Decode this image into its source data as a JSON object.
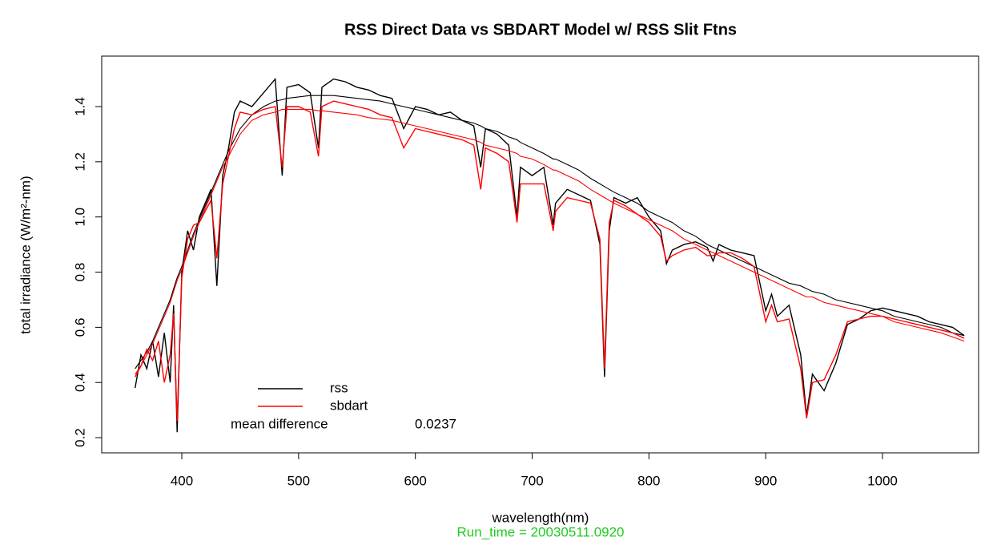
{
  "chart_data": {
    "type": "line",
    "title": "RSS Direct Data vs SBDART Model w/ RSS Slit Ftns",
    "xlabel": "wavelength(nm)",
    "ylabel": "total irradiance (W/m²-nm)",
    "footnote": "Run_time = 20030511.0920",
    "annotation": {
      "text": "mean difference",
      "value": 0.0237
    },
    "legend": "bottom-left",
    "xlim": [
      331.4,
      1082.3
    ],
    "ylim": [
      0.145,
      1.583
    ],
    "xticks": [
      400,
      500,
      600,
      700,
      800,
      900,
      1000
    ],
    "yticks": [
      0.2,
      0.4,
      0.6,
      0.8,
      {
        "value": 1,
        "label": "1.0"
      },
      1.2,
      1.4
    ],
    "x": [
      360,
      365,
      370,
      375,
      380,
      385,
      390,
      393,
      396,
      400,
      405,
      410,
      415,
      420,
      425,
      430,
      435,
      440,
      445,
      450,
      460,
      470,
      480,
      486,
      490,
      500,
      510,
      517,
      520,
      530,
      540,
      550,
      560,
      570,
      580,
      590,
      600,
      610,
      620,
      630,
      640,
      650,
      656,
      660,
      670,
      680,
      687,
      690,
      700,
      710,
      718,
      720,
      730,
      740,
      750,
      758,
      762,
      766,
      770,
      780,
      790,
      800,
      810,
      815,
      820,
      830,
      840,
      850,
      855,
      860,
      870,
      880,
      890,
      900,
      905,
      910,
      920,
      930,
      935,
      940,
      950,
      960,
      970,
      980,
      990,
      1000,
      1010,
      1020,
      1030,
      1040,
      1050,
      1060,
      1070
    ],
    "series": [
      {
        "name": "rss",
        "color": "#000000",
        "values": [
          0.38,
          0.5,
          0.45,
          0.55,
          0.42,
          0.58,
          0.4,
          0.68,
          0.22,
          0.8,
          0.95,
          0.88,
          1.0,
          1.05,
          1.1,
          0.75,
          1.15,
          1.25,
          1.38,
          1.42,
          1.4,
          1.45,
          1.5,
          1.15,
          1.47,
          1.48,
          1.45,
          1.25,
          1.47,
          1.5,
          1.49,
          1.47,
          1.46,
          1.44,
          1.43,
          1.32,
          1.4,
          1.39,
          1.37,
          1.38,
          1.35,
          1.33,
          1.18,
          1.32,
          1.3,
          1.26,
          1.0,
          1.18,
          1.15,
          1.18,
          0.97,
          1.05,
          1.1,
          1.08,
          1.06,
          0.9,
          0.42,
          0.95,
          1.07,
          1.05,
          1.07,
          1.0,
          0.95,
          0.83,
          0.88,
          0.9,
          0.91,
          0.89,
          0.84,
          0.9,
          0.88,
          0.87,
          0.86,
          0.66,
          0.72,
          0.64,
          0.68,
          0.5,
          0.28,
          0.43,
          0.37,
          0.47,
          0.61,
          0.63,
          0.66,
          0.67,
          0.66,
          0.65,
          0.64,
          0.62,
          0.61,
          0.6,
          0.57
        ],
        "smooth": [
          0.45,
          0.48,
          0.51,
          0.55,
          0.6,
          0.65,
          0.7,
          0.74,
          0.78,
          0.82,
          0.88,
          0.94,
          0.99,
          1.04,
          1.09,
          1.14,
          1.19,
          1.24,
          1.28,
          1.32,
          1.37,
          1.4,
          1.42,
          1.425,
          1.43,
          1.435,
          1.44,
          1.44,
          1.44,
          1.44,
          1.435,
          1.43,
          1.425,
          1.42,
          1.41,
          1.4,
          1.39,
          1.38,
          1.37,
          1.36,
          1.35,
          1.34,
          1.33,
          1.32,
          1.31,
          1.29,
          1.28,
          1.27,
          1.25,
          1.23,
          1.21,
          1.21,
          1.19,
          1.17,
          1.14,
          1.12,
          1.11,
          1.1,
          1.09,
          1.07,
          1.05,
          1.02,
          1.0,
          0.99,
          0.98,
          0.95,
          0.93,
          0.9,
          0.89,
          0.88,
          0.86,
          0.84,
          0.82,
          0.8,
          0.79,
          0.78,
          0.76,
          0.75,
          0.74,
          0.73,
          0.72,
          0.7,
          0.69,
          0.68,
          0.67,
          0.66,
          0.64,
          0.63,
          0.62,
          0.61,
          0.6,
          0.58,
          0.57
        ]
      },
      {
        "name": "sbdart",
        "color": "#ff0000",
        "values": [
          0.42,
          0.46,
          0.52,
          0.48,
          0.55,
          0.4,
          0.5,
          0.65,
          0.26,
          0.78,
          0.92,
          0.97,
          0.98,
          1.02,
          1.06,
          0.85,
          1.12,
          1.22,
          1.32,
          1.38,
          1.37,
          1.39,
          1.4,
          1.18,
          1.4,
          1.4,
          1.38,
          1.22,
          1.4,
          1.42,
          1.41,
          1.4,
          1.39,
          1.37,
          1.36,
          1.25,
          1.32,
          1.31,
          1.3,
          1.29,
          1.28,
          1.26,
          1.1,
          1.25,
          1.23,
          1.2,
          0.98,
          1.12,
          1.12,
          1.12,
          0.95,
          1.02,
          1.07,
          1.06,
          1.05,
          0.92,
          0.45,
          0.98,
          1.06,
          1.04,
          1.01,
          0.98,
          0.93,
          0.84,
          0.86,
          0.88,
          0.89,
          0.86,
          0.86,
          0.87,
          0.87,
          0.85,
          0.82,
          0.62,
          0.68,
          0.62,
          0.63,
          0.45,
          0.27,
          0.4,
          0.41,
          0.5,
          0.62,
          0.63,
          0.64,
          0.64,
          0.63,
          0.62,
          0.61,
          0.6,
          0.59,
          0.58,
          0.56
        ],
        "smooth": [
          0.43,
          0.46,
          0.5,
          0.54,
          0.59,
          0.64,
          0.69,
          0.73,
          0.77,
          0.81,
          0.87,
          0.93,
          0.98,
          1.03,
          1.08,
          1.13,
          1.18,
          1.22,
          1.26,
          1.3,
          1.35,
          1.37,
          1.38,
          1.39,
          1.39,
          1.39,
          1.39,
          1.385,
          1.385,
          1.38,
          1.375,
          1.37,
          1.36,
          1.355,
          1.35,
          1.34,
          1.33,
          1.32,
          1.31,
          1.3,
          1.29,
          1.28,
          1.27,
          1.26,
          1.25,
          1.24,
          1.23,
          1.22,
          1.21,
          1.19,
          1.17,
          1.17,
          1.15,
          1.13,
          1.1,
          1.08,
          1.07,
          1.06,
          1.05,
          1.03,
          1.01,
          0.99,
          0.97,
          0.96,
          0.95,
          0.92,
          0.9,
          0.88,
          0.87,
          0.86,
          0.84,
          0.82,
          0.8,
          0.78,
          0.77,
          0.76,
          0.74,
          0.72,
          0.71,
          0.71,
          0.69,
          0.68,
          0.67,
          0.66,
          0.65,
          0.64,
          0.62,
          0.61,
          0.6,
          0.59,
          0.58,
          0.565,
          0.55
        ]
      }
    ]
  }
}
